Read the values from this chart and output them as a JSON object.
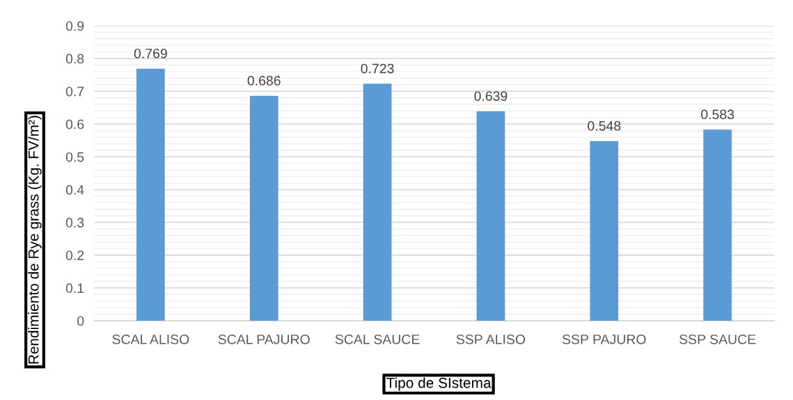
{
  "chart_data": {
    "type": "bar",
    "xlabel": "Tipo de SIstema",
    "ylabel": "Rendimiento de Rye grass (Kg. FV/m²)",
    "categories": [
      "SCAL ALISO",
      "SCAL PAJURO",
      "SCAL SAUCE",
      "SSP ALISO",
      "SSP PAJURO",
      "SSP SAUCE"
    ],
    "values": [
      0.769,
      0.686,
      0.723,
      0.639,
      0.548,
      0.583
    ],
    "color": "#5b9bd5",
    "ylim": [
      0,
      0.9
    ],
    "yticks": [
      0,
      0.1,
      0.2,
      0.3,
      0.4,
      0.5,
      0.6,
      0.7,
      0.8,
      0.9
    ],
    "grid": "y",
    "data_labels": true
  }
}
